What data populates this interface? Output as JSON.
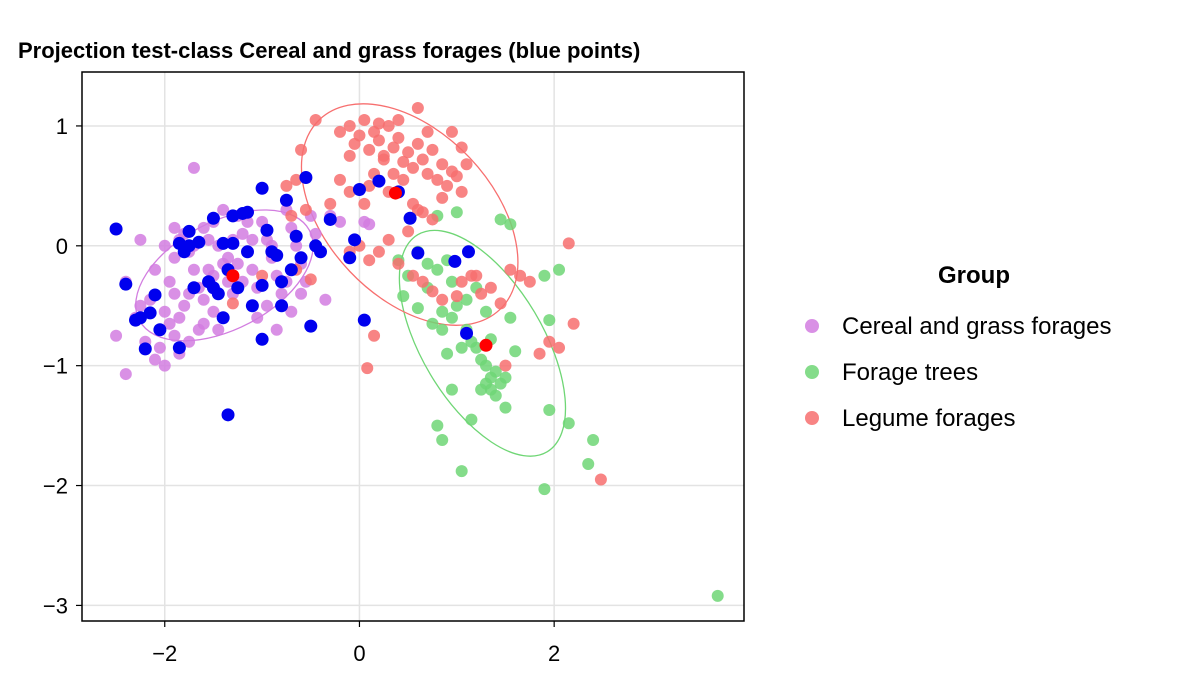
{
  "chart_data": {
    "type": "scatter",
    "title": "Projection test-class Cereal and grass forages (blue points)",
    "xlabel": "",
    "ylabel": "",
    "xlim": [
      -2.85,
      3.95
    ],
    "ylim": [
      -3.13,
      1.45
    ],
    "xticks": [
      -2,
      0,
      2
    ],
    "yticks": [
      1,
      0,
      -1,
      -2,
      -3
    ],
    "xtick_labels": [
      "−2",
      "0",
      "2"
    ],
    "ytick_labels": [
      "1",
      "0",
      "−1",
      "−2",
      "−3"
    ],
    "grid": true,
    "legend": {
      "title": "Group",
      "position": "right",
      "entries": [
        "Cereal and grass forages",
        "Forage trees",
        "Legume forages"
      ]
    },
    "colors": {
      "Cereal and grass forages": "#d27de0",
      "Forage trees": "#6fd675",
      "Legume forages": "#f76f6f",
      "projected": "#0000ee",
      "centroid": "#ff0000"
    },
    "series": [
      {
        "name": "Cereal and grass forages",
        "points": [
          [
            -1.7,
            0.65
          ],
          [
            -2.25,
            0.05
          ],
          [
            -2.4,
            -0.3
          ],
          [
            -2.3,
            -0.6
          ],
          [
            -2.2,
            -0.8
          ],
          [
            -2.1,
            -0.95
          ],
          [
            -2.0,
            -1.0
          ],
          [
            -2.4,
            -1.07
          ],
          [
            -1.9,
            0.15
          ],
          [
            -1.8,
            0.1
          ],
          [
            -1.75,
            -0.05
          ],
          [
            -1.7,
            -0.2
          ],
          [
            -1.65,
            -0.35
          ],
          [
            -1.6,
            -0.45
          ],
          [
            -1.55,
            0.05
          ],
          [
            -1.5,
            0.2
          ],
          [
            -1.45,
            0.0
          ],
          [
            -1.4,
            -0.15
          ],
          [
            -1.35,
            -0.3
          ],
          [
            -1.3,
            -0.4
          ],
          [
            -1.25,
            0.25
          ],
          [
            -1.2,
            0.1
          ],
          [
            -1.15,
            -0.05
          ],
          [
            -1.1,
            -0.2
          ],
          [
            -1.05,
            -0.35
          ],
          [
            -1.0,
            0.2
          ],
          [
            -0.95,
            0.05
          ],
          [
            -0.9,
            -0.1
          ],
          [
            -0.85,
            -0.25
          ],
          [
            -0.8,
            -0.4
          ],
          [
            -0.75,
            0.3
          ],
          [
            -0.7,
            0.15
          ],
          [
            -0.65,
            0.0
          ],
          [
            -0.6,
            -0.15
          ],
          [
            -0.55,
            -0.3
          ],
          [
            -0.5,
            0.25
          ],
          [
            -0.45,
            0.1
          ],
          [
            -0.4,
            -0.05
          ],
          [
            -0.35,
            -0.45
          ],
          [
            -0.7,
            -0.55
          ],
          [
            -0.85,
            -0.7
          ],
          [
            -2.0,
            -0.55
          ],
          [
            -1.95,
            -0.65
          ],
          [
            -1.9,
            -0.75
          ],
          [
            -2.05,
            -0.7
          ],
          [
            -1.85,
            -0.6
          ],
          [
            -1.8,
            -0.5
          ],
          [
            -1.75,
            -0.4
          ],
          [
            -1.6,
            -0.65
          ],
          [
            -1.5,
            -0.55
          ],
          [
            -1.45,
            -0.7
          ],
          [
            -1.95,
            -0.3
          ],
          [
            -2.1,
            -0.2
          ],
          [
            -1.9,
            -0.4
          ],
          [
            -1.7,
            0.0
          ],
          [
            -1.6,
            0.15
          ],
          [
            -1.4,
            0.3
          ],
          [
            -1.3,
            0.05
          ],
          [
            -1.15,
            0.2
          ],
          [
            -0.95,
            -0.5
          ],
          [
            -1.05,
            -0.6
          ],
          [
            -2.15,
            -0.45
          ],
          [
            -2.25,
            -0.5
          ],
          [
            -1.85,
            -0.9
          ],
          [
            -2.5,
            -0.75
          ],
          [
            -0.2,
            0.2
          ],
          [
            0.05,
            0.2
          ],
          [
            0.1,
            0.18
          ],
          [
            -1.55,
            -0.2
          ],
          [
            -1.2,
            -0.3
          ],
          [
            -0.6,
            -0.4
          ],
          [
            -1.75,
            -0.8
          ],
          [
            -1.35,
            -0.1
          ],
          [
            -1.1,
            0.05
          ],
          [
            -0.3,
            0.25
          ],
          [
            -1.65,
            -0.7
          ],
          [
            -2.0,
            0.0
          ],
          [
            -1.9,
            -0.1
          ],
          [
            -1.5,
            -0.25
          ],
          [
            -1.25,
            -0.15
          ],
          [
            -0.9,
            0.0
          ],
          [
            -0.75,
            -0.3
          ],
          [
            -1.85,
            0.05
          ],
          [
            -2.05,
            -0.85
          ]
        ]
      },
      {
        "name": "Forage trees",
        "points": [
          [
            0.8,
            0.25
          ],
          [
            1.0,
            0.28
          ],
          [
            1.45,
            0.22
          ],
          [
            1.55,
            0.18
          ],
          [
            0.6,
            -0.05
          ],
          [
            0.7,
            -0.15
          ],
          [
            0.8,
            -0.2
          ],
          [
            0.9,
            -0.12
          ],
          [
            0.85,
            -0.55
          ],
          [
            0.95,
            -0.6
          ],
          [
            1.0,
            -0.5
          ],
          [
            1.1,
            -0.45
          ],
          [
            0.75,
            -0.65
          ],
          [
            0.85,
            -0.7
          ],
          [
            0.9,
            -0.9
          ],
          [
            1.05,
            -0.85
          ],
          [
            1.15,
            -0.8
          ],
          [
            1.25,
            -0.95
          ],
          [
            1.3,
            -1.0
          ],
          [
            1.35,
            -1.1
          ],
          [
            1.4,
            -1.05
          ],
          [
            1.3,
            -1.15
          ],
          [
            1.35,
            -1.2
          ],
          [
            1.45,
            -1.15
          ],
          [
            1.25,
            -1.2
          ],
          [
            1.4,
            -1.25
          ],
          [
            1.5,
            -1.1
          ],
          [
            1.2,
            -0.85
          ],
          [
            1.55,
            -0.6
          ],
          [
            1.6,
            -0.88
          ],
          [
            1.5,
            -1.35
          ],
          [
            0.95,
            -1.2
          ],
          [
            1.15,
            -1.45
          ],
          [
            0.8,
            -1.5
          ],
          [
            0.85,
            -1.62
          ],
          [
            1.05,
            -1.88
          ],
          [
            1.95,
            -0.62
          ],
          [
            2.05,
            -0.2
          ],
          [
            1.9,
            -0.25
          ],
          [
            1.95,
            -1.37
          ],
          [
            2.15,
            -1.48
          ],
          [
            2.35,
            -1.82
          ],
          [
            2.4,
            -1.62
          ],
          [
            1.9,
            -2.03
          ],
          [
            3.68,
            -2.92
          ],
          [
            0.6,
            -0.52
          ],
          [
            0.45,
            -0.42
          ],
          [
            0.7,
            -0.35
          ],
          [
            1.35,
            -0.78
          ],
          [
            1.3,
            -0.55
          ],
          [
            0.5,
            -0.25
          ],
          [
            0.4,
            -0.12
          ],
          [
            1.2,
            -0.35
          ],
          [
            1.1,
            -0.7
          ],
          [
            0.95,
            -0.3
          ]
        ]
      },
      {
        "name": "Legume forages",
        "points": [
          [
            -0.45,
            1.05
          ],
          [
            -0.2,
            0.95
          ],
          [
            -0.1,
            1.0
          ],
          [
            -0.05,
            0.85
          ],
          [
            0.0,
            0.92
          ],
          [
            0.05,
            1.05
          ],
          [
            0.1,
            0.8
          ],
          [
            0.15,
            0.95
          ],
          [
            0.2,
            0.88
          ],
          [
            0.25,
            0.75
          ],
          [
            0.3,
            1.0
          ],
          [
            0.35,
            0.82
          ],
          [
            0.4,
            0.9
          ],
          [
            0.45,
            0.7
          ],
          [
            0.5,
            0.78
          ],
          [
            0.55,
            0.65
          ],
          [
            0.6,
            0.85
          ],
          [
            0.65,
            0.72
          ],
          [
            0.7,
            0.6
          ],
          [
            0.75,
            0.8
          ],
          [
            0.8,
            0.55
          ],
          [
            0.85,
            0.68
          ],
          [
            0.9,
            0.5
          ],
          [
            0.95,
            0.62
          ],
          [
            1.0,
            0.58
          ],
          [
            1.05,
            0.45
          ],
          [
            0.6,
            1.15
          ],
          [
            0.4,
            1.05
          ],
          [
            0.2,
            1.02
          ],
          [
            -0.1,
            0.75
          ],
          [
            -0.2,
            0.55
          ],
          [
            -0.3,
            0.35
          ],
          [
            -0.1,
            0.45
          ],
          [
            0.05,
            0.35
          ],
          [
            -0.6,
            0.8
          ],
          [
            -0.65,
            0.55
          ],
          [
            -0.55,
            0.3
          ],
          [
            -0.75,
            0.5
          ],
          [
            -0.7,
            0.25
          ],
          [
            0.15,
            0.6
          ],
          [
            0.3,
            0.45
          ],
          [
            0.45,
            0.55
          ],
          [
            0.55,
            0.35
          ],
          [
            0.65,
            0.28
          ],
          [
            0.75,
            0.22
          ],
          [
            0.5,
            0.12
          ],
          [
            0.3,
            0.05
          ],
          [
            0.2,
            -0.05
          ],
          [
            0.1,
            -0.12
          ],
          [
            0.0,
            0.0
          ],
          [
            -0.1,
            -0.05
          ],
          [
            0.4,
            -0.15
          ],
          [
            0.55,
            -0.25
          ],
          [
            0.65,
            -0.3
          ],
          [
            0.75,
            -0.38
          ],
          [
            0.85,
            -0.45
          ],
          [
            1.0,
            -0.42
          ],
          [
            1.05,
            -0.3
          ],
          [
            1.15,
            -0.25
          ],
          [
            1.25,
            -0.4
          ],
          [
            1.35,
            -0.35
          ],
          [
            1.45,
            -0.48
          ],
          [
            1.55,
            -0.2
          ],
          [
            1.65,
            -0.25
          ],
          [
            1.75,
            -0.3
          ],
          [
            1.85,
            -0.9
          ],
          [
            1.95,
            -0.8
          ],
          [
            2.05,
            -0.85
          ],
          [
            2.15,
            0.02
          ],
          [
            2.2,
            -0.65
          ],
          [
            1.5,
            -1.0
          ],
          [
            1.2,
            -0.25
          ],
          [
            2.48,
            -1.95
          ],
          [
            0.95,
            0.95
          ],
          [
            1.05,
            0.82
          ],
          [
            1.1,
            0.68
          ],
          [
            0.85,
            0.4
          ],
          [
            0.15,
            -0.75
          ],
          [
            0.08,
            -1.02
          ],
          [
            -1.3,
            -0.48
          ],
          [
            -1.0,
            -0.25
          ],
          [
            -0.65,
            -0.2
          ],
          [
            -0.5,
            -0.28
          ],
          [
            0.7,
            0.95
          ],
          [
            0.6,
            0.3
          ],
          [
            0.25,
            0.72
          ],
          [
            0.35,
            0.6
          ],
          [
            0.1,
            0.5
          ]
        ]
      }
    ],
    "projected_points": [
      [
        -2.5,
        0.14
      ],
      [
        -2.4,
        -0.32
      ],
      [
        -2.25,
        -0.6
      ],
      [
        -2.3,
        -0.62
      ],
      [
        -2.2,
        -0.86
      ],
      [
        -2.15,
        -0.56
      ],
      [
        -2.1,
        -0.41
      ],
      [
        -2.05,
        -0.7
      ],
      [
        -1.85,
        0.02
      ],
      [
        -1.8,
        -0.05
      ],
      [
        -1.75,
        0.12
      ],
      [
        -1.7,
        -0.35
      ],
      [
        -1.65,
        0.03
      ],
      [
        -1.55,
        -0.3
      ],
      [
        -1.5,
        0.23
      ],
      [
        -1.45,
        -0.4
      ],
      [
        -1.4,
        0.02
      ],
      [
        -1.35,
        -0.2
      ],
      [
        -1.3,
        0.25
      ],
      [
        -1.25,
        -0.35
      ],
      [
        -1.2,
        0.27
      ],
      [
        -1.15,
        0.28
      ],
      [
        -1.1,
        -0.5
      ],
      [
        -1.0,
        0.48
      ],
      [
        -0.95,
        0.13
      ],
      [
        -0.9,
        -0.05
      ],
      [
        -0.85,
        -0.08
      ],
      [
        -0.8,
        -0.3
      ],
      [
        -0.75,
        0.38
      ],
      [
        -0.7,
        -0.2
      ],
      [
        -0.65,
        0.08
      ],
      [
        -0.6,
        -0.1
      ],
      [
        -0.55,
        0.57
      ],
      [
        -0.5,
        -0.67
      ],
      [
        -0.45,
        0.0
      ],
      [
        -0.4,
        -0.05
      ],
      [
        -0.3,
        0.22
      ],
      [
        -1.35,
        -1.41
      ],
      [
        -1.0,
        -0.78
      ],
      [
        -1.85,
        -0.85
      ],
      [
        -1.4,
        -0.6
      ],
      [
        -1.5,
        -0.35
      ],
      [
        -1.75,
        0.0
      ],
      [
        -1.3,
        0.02
      ],
      [
        -1.0,
        -0.33
      ],
      [
        -0.8,
        -0.5
      ],
      [
        -0.05,
        0.05
      ],
      [
        -0.1,
        -0.1
      ],
      [
        0.05,
        -0.62
      ],
      [
        0.0,
        0.47
      ],
      [
        0.2,
        0.54
      ],
      [
        0.52,
        0.23
      ],
      [
        0.6,
        -0.06
      ],
      [
        0.98,
        -0.13
      ],
      [
        1.12,
        -0.05
      ],
      [
        1.1,
        -0.73
      ],
      [
        0.4,
        0.45
      ],
      [
        -1.15,
        -0.05
      ]
    ],
    "centroids": [
      {
        "group": "Cereal and grass forages",
        "point": [
          -1.3,
          -0.25
        ]
      },
      {
        "group": "Forage trees",
        "point": [
          1.3,
          -0.83
        ]
      },
      {
        "group": "Legume forages",
        "point": [
          0.37,
          0.44
        ]
      }
    ]
  }
}
